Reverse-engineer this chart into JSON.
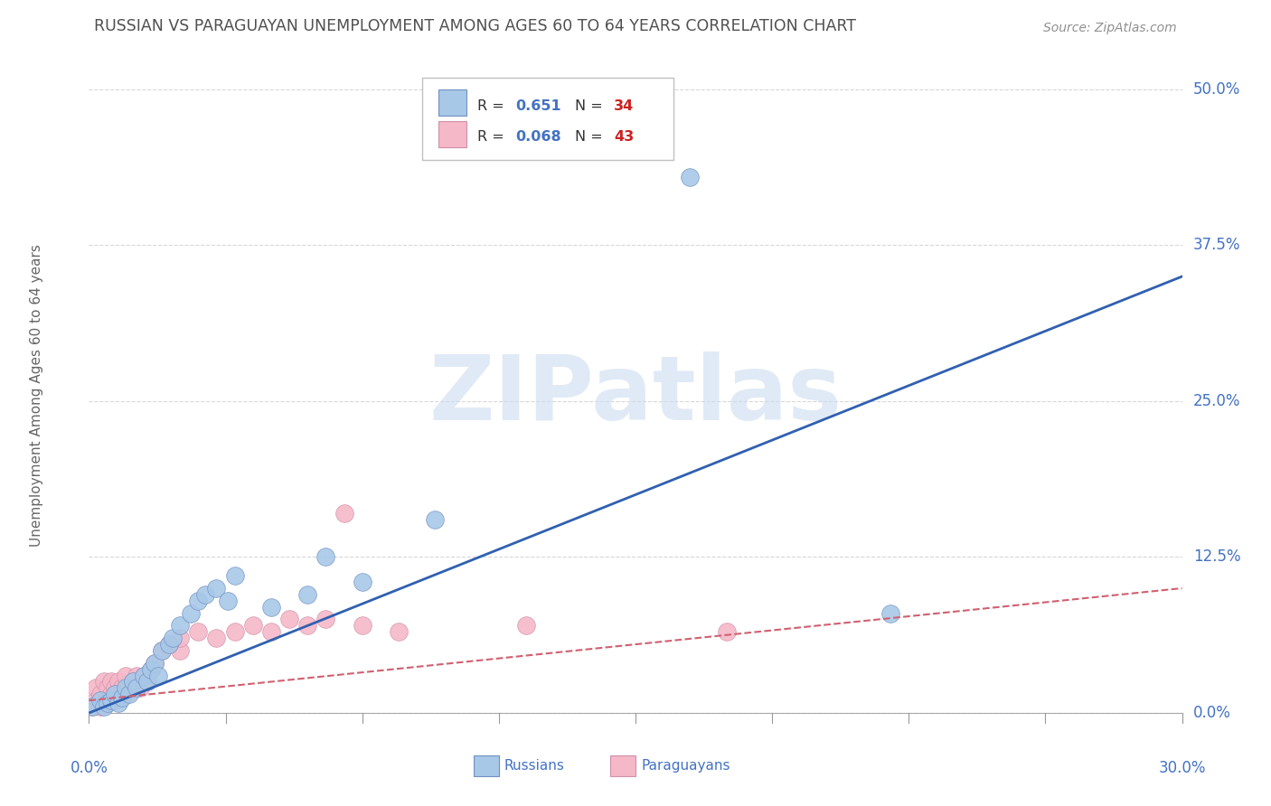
{
  "title": "RUSSIAN VS PARAGUAYAN UNEMPLOYMENT AMONG AGES 60 TO 64 YEARS CORRELATION CHART",
  "source": "Source: ZipAtlas.com",
  "ylabel": "Unemployment Among Ages 60 to 64 years",
  "ytick_labels": [
    "0.0%",
    "12.5%",
    "25.0%",
    "37.5%",
    "50.0%"
  ],
  "ytick_values": [
    0.0,
    0.125,
    0.25,
    0.375,
    0.5
  ],
  "xtick_labels": [
    "0.0%",
    "",
    "",
    "",
    "30.0%"
  ],
  "xlim": [
    0.0,
    0.3
  ],
  "ylim": [
    -0.01,
    0.52
  ],
  "legend_russian_R": "0.651",
  "legend_russian_N": "34",
  "legend_paraguayan_R": "0.068",
  "legend_paraguayan_N": "43",
  "russian_color": "#a8c8e8",
  "paraguayan_color": "#f5b8c8",
  "russian_line_color": "#3060b0",
  "paraguayan_line_color": "#d06070",
  "title_color": "#505050",
  "source_color": "#909090",
  "axis_label_color": "#4472c4",
  "background_color": "#ffffff",
  "grid_color": "#d8d8d8",
  "russians_x": [
    0.001,
    0.003,
    0.004,
    0.005,
    0.006,
    0.007,
    0.008,
    0.009,
    0.01,
    0.011,
    0.012,
    0.013,
    0.015,
    0.016,
    0.017,
    0.018,
    0.019,
    0.02,
    0.022,
    0.023,
    0.025,
    0.028,
    0.03,
    0.032,
    0.035,
    0.038,
    0.04,
    0.05,
    0.06,
    0.065,
    0.075,
    0.095,
    0.165,
    0.22
  ],
  "russians_y": [
    0.005,
    0.01,
    0.005,
    0.008,
    0.01,
    0.015,
    0.008,
    0.012,
    0.02,
    0.015,
    0.025,
    0.02,
    0.03,
    0.025,
    0.035,
    0.04,
    0.03,
    0.05,
    0.055,
    0.06,
    0.07,
    0.08,
    0.09,
    0.095,
    0.1,
    0.09,
    0.11,
    0.085,
    0.095,
    0.125,
    0.105,
    0.155,
    0.43,
    0.08
  ],
  "paraguayans_x": [
    0.001,
    0.002,
    0.002,
    0.003,
    0.003,
    0.004,
    0.004,
    0.005,
    0.005,
    0.006,
    0.006,
    0.007,
    0.007,
    0.008,
    0.008,
    0.009,
    0.01,
    0.01,
    0.011,
    0.012,
    0.013,
    0.014,
    0.015,
    0.016,
    0.017,
    0.018,
    0.02,
    0.022,
    0.025,
    0.025,
    0.03,
    0.035,
    0.04,
    0.045,
    0.05,
    0.055,
    0.06,
    0.065,
    0.07,
    0.075,
    0.085,
    0.12,
    0.175
  ],
  "paraguayans_y": [
    0.005,
    0.01,
    0.02,
    0.005,
    0.015,
    0.008,
    0.025,
    0.01,
    0.02,
    0.015,
    0.025,
    0.01,
    0.02,
    0.015,
    0.025,
    0.02,
    0.015,
    0.03,
    0.02,
    0.025,
    0.03,
    0.02,
    0.03,
    0.025,
    0.035,
    0.04,
    0.05,
    0.055,
    0.05,
    0.06,
    0.065,
    0.06,
    0.065,
    0.07,
    0.065,
    0.075,
    0.07,
    0.075,
    0.16,
    0.07,
    0.065,
    0.07,
    0.065
  ],
  "watermark_text": "ZIPatlas",
  "legend_bottom_labels": [
    "Russians",
    "Paraguayans"
  ]
}
